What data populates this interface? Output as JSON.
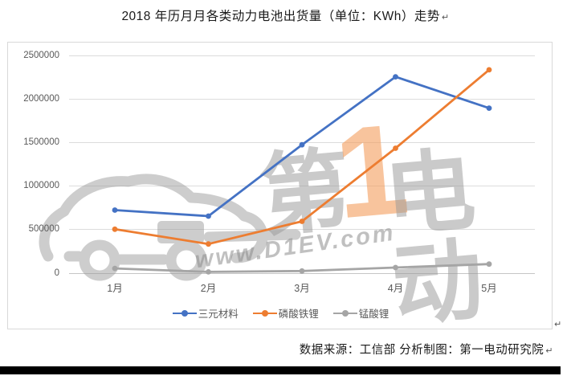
{
  "title": {
    "text": "2018 年历月月各类动力电池出货量（单位：KWh）走势",
    "paragraph_mark": "↵"
  },
  "source_note": {
    "text": "数据来源：工信部 分析制图：第一电动研究院",
    "paragraph_mark": "↵"
  },
  "chart_paragraph_mark": "↵",
  "watermark": {
    "icon": "electric-car-outline-icon",
    "big_text_gray_left": "第",
    "big_text_orange": "1",
    "big_text_gray_right": "电动",
    "url_text": "www.D1EV.com"
  },
  "chart_data": {
    "type": "line",
    "title": "2018 年历月月各类动力电池出货量（单位：KWh）走势",
    "categories": [
      "1月",
      "2月",
      "3月",
      "4月",
      "5月"
    ],
    "series": [
      {
        "name": "三元材料",
        "color": "#4472C4",
        "values": [
          720000,
          650000,
          1470000,
          2250000,
          1890000
        ]
      },
      {
        "name": "磷酸铁锂",
        "color": "#ED7D31",
        "values": [
          500000,
          330000,
          590000,
          1430000,
          2330000
        ]
      },
      {
        "name": "锰酸锂",
        "color": "#A5A5A5",
        "values": [
          50000,
          10000,
          20000,
          60000,
          100000
        ]
      }
    ],
    "xlabel": "",
    "ylabel": "",
    "ylim": [
      0,
      2500000
    ],
    "y_ticks": [
      "2500000",
      "2000000",
      "1500000",
      "1000000",
      "500000",
      "0"
    ],
    "grid": true,
    "legend_position": "bottom"
  },
  "colors": {
    "grid": "#DCDCDC",
    "axis_text": "#595959",
    "chart_border": "#D9D9D9",
    "watermark_gray": "#999999",
    "watermark_orange": "#F49D5C"
  }
}
